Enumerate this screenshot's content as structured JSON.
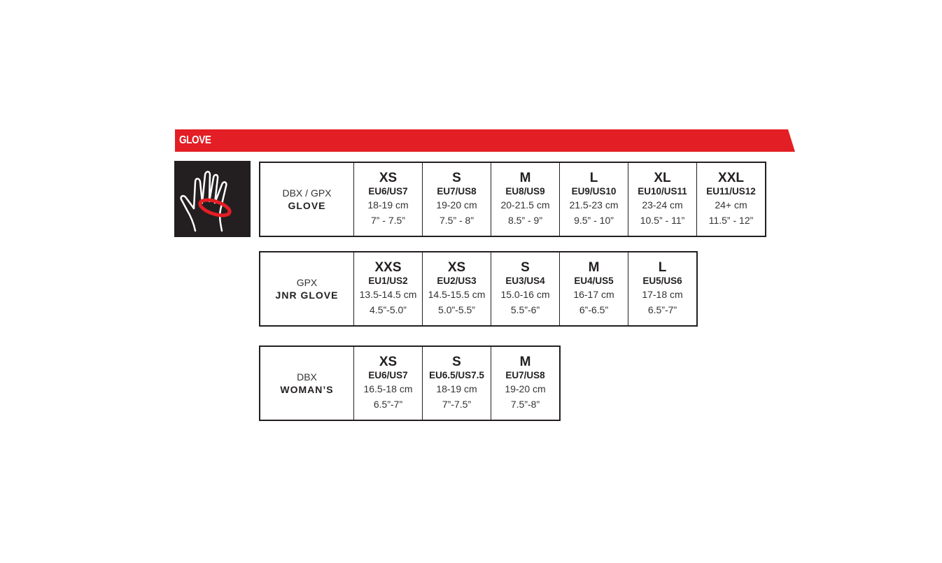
{
  "header": {
    "title": "GLOVE"
  },
  "colors": {
    "accent": "#e31e24",
    "dark": "#231f20"
  },
  "icon": "hand-measurement-icon",
  "tables": [
    {
      "label_top": "DBX / GPX",
      "label_bottom": "GLOVE",
      "sizes": [
        {
          "size": "XS",
          "eu_us": "EU6/US7",
          "cm": "18-19 cm",
          "inch": "7” - 7.5”"
        },
        {
          "size": "S",
          "eu_us": "EU7/US8",
          "cm": "19-20 cm",
          "inch": "7.5” - 8”"
        },
        {
          "size": "M",
          "eu_us": "EU8/US9",
          "cm": "20-21.5 cm",
          "inch": "8.5” - 9”"
        },
        {
          "size": "L",
          "eu_us": "EU9/US10",
          "cm": "21.5-23 cm",
          "inch": "9.5” - 10”"
        },
        {
          "size": "XL",
          "eu_us": "EU10/US11",
          "cm": "23-24 cm",
          "inch": "10.5” - 11”"
        },
        {
          "size": "XXL",
          "eu_us": "EU11/US12",
          "cm": "24+ cm",
          "inch": "11.5” - 12”"
        }
      ]
    },
    {
      "label_top": "GPX",
      "label_bottom": "JNR GLOVE",
      "sizes": [
        {
          "size": "XXS",
          "eu_us": "EU1/US2",
          "cm": "13.5-14.5 cm",
          "inch": "4.5”-5.0”"
        },
        {
          "size": "XS",
          "eu_us": "EU2/US3",
          "cm": "14.5-15.5 cm",
          "inch": "5.0”-5.5”"
        },
        {
          "size": "S",
          "eu_us": "EU3/US4",
          "cm": "15.0-16 cm",
          "inch": "5.5”-6”"
        },
        {
          "size": "M",
          "eu_us": "EU4/US5",
          "cm": "16-17 cm",
          "inch": "6”-6.5”"
        },
        {
          "size": "L",
          "eu_us": "EU5/US6",
          "cm": "17-18 cm",
          "inch": "6.5”-7”"
        }
      ]
    },
    {
      "label_top": "DBX",
      "label_bottom": "WOMAN’S",
      "sizes": [
        {
          "size": "XS",
          "eu_us": "EU6/US7",
          "cm": "16.5-18 cm",
          "inch": "6.5”-7”"
        },
        {
          "size": "S",
          "eu_us": "EU6.5/US7.5",
          "cm": "18-19 cm",
          "inch": "7”-7.5”"
        },
        {
          "size": "M",
          "eu_us": "EU7/US8",
          "cm": "19-20 cm",
          "inch": "7.5”-8”"
        }
      ]
    }
  ]
}
